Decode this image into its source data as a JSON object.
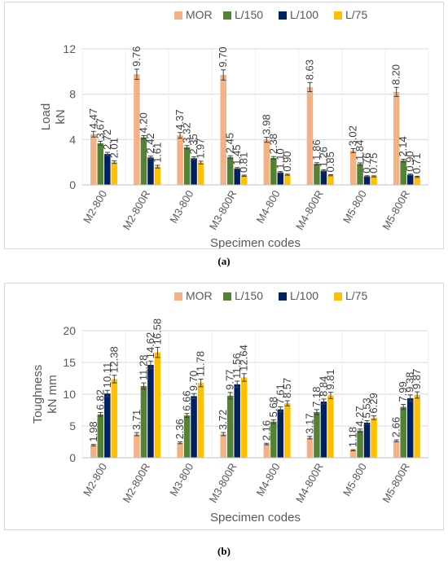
{
  "chart_data": [
    {
      "type": "bar",
      "panel": "a",
      "ylabel_lines": [
        "Load",
        "kN"
      ],
      "xlabel": "Specimen codes",
      "ylim": [
        0,
        12
      ],
      "yticks": [
        0,
        4,
        8,
        12
      ],
      "categories": [
        "M2-800",
        "M2-800R",
        "M3-800",
        "M3-800R",
        "M4-800",
        "M4-800R",
        "M5-800",
        "M5-800R"
      ],
      "series": [
        {
          "name": "MOR",
          "color": "#f4b183",
          "values": [
            4.47,
            9.76,
            4.37,
            9.7,
            3.98,
            8.63,
            3.02,
            8.2
          ],
          "errors": [
            0.25,
            0.45,
            0.25,
            0.45,
            0.22,
            0.4,
            0.18,
            0.4
          ]
        },
        {
          "name": "L/150",
          "color": "#548235",
          "values": [
            3.67,
            4.2,
            3.32,
            2.45,
            2.38,
            1.86,
            1.84,
            2.14
          ],
          "errors": [
            0.18,
            0.15,
            0.15,
            0.12,
            0.12,
            0.1,
            0.1,
            0.12
          ]
        },
        {
          "name": "L/100",
          "color": "#002060",
          "values": [
            2.72,
            2.42,
            2.35,
            1.45,
            1.1,
            1.26,
            0.76,
            0.9
          ],
          "errors": [
            0.15,
            0.12,
            0.12,
            0.08,
            0.08,
            0.08,
            0.05,
            0.06
          ]
        },
        {
          "name": "L/75",
          "color": "#ffc000",
          "values": [
            2.01,
            1.61,
            1.97,
            0.81,
            0.9,
            0.85,
            0.75,
            0.71
          ],
          "errors": [
            0.12,
            0.12,
            0.12,
            0.05,
            0.05,
            0.05,
            0.05,
            0.05
          ]
        }
      ],
      "legend_position": "top",
      "grid": true
    },
    {
      "type": "bar",
      "panel": "b",
      "ylabel_lines": [
        "Toughness",
        "kN mm"
      ],
      "xlabel": "Specimen codes",
      "ylim": [
        0,
        20
      ],
      "yticks": [
        0,
        5,
        10,
        15,
        20
      ],
      "categories": [
        "M2-800",
        "M2-800R",
        "M3-800",
        "M3-800R",
        "M4-800",
        "M4-800R",
        "M5-800",
        "M5-800R"
      ],
      "series": [
        {
          "name": "MOR",
          "color": "#f4b183",
          "values": [
            1.98,
            3.71,
            2.36,
            3.72,
            2.16,
            3.17,
            1.18,
            2.66
          ],
          "errors": [
            0.12,
            0.25,
            0.15,
            0.25,
            0.12,
            0.2,
            0.08,
            0.15
          ]
        },
        {
          "name": "L/150",
          "color": "#548235",
          "values": [
            6.82,
            11.28,
            6.66,
            9.77,
            5.68,
            7.18,
            4.27,
            7.99
          ],
          "errors": [
            0.3,
            0.5,
            0.3,
            0.5,
            0.3,
            0.4,
            0.25,
            0.4
          ]
        },
        {
          "name": "L/100",
          "color": "#002060",
          "values": [
            10.11,
            14.62,
            9.7,
            11.56,
            7.61,
            8.84,
            5.53,
            9.38
          ],
          "errors": [
            0.5,
            0.6,
            0.4,
            0.5,
            0.4,
            0.4,
            0.3,
            0.5
          ]
        },
        {
          "name": "L/75",
          "color": "#ffc000",
          "values": [
            12.38,
            16.58,
            11.78,
            12.64,
            8.57,
            9.81,
            6.29,
            9.87
          ],
          "errors": [
            0.6,
            0.8,
            0.6,
            0.6,
            0.4,
            0.5,
            0.3,
            0.5
          ]
        }
      ],
      "legend_position": "top",
      "grid": true
    }
  ],
  "captions": {
    "a": "(a)",
    "b": "(b)"
  }
}
